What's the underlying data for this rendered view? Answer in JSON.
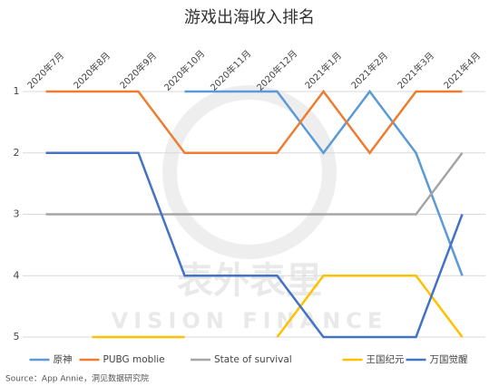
{
  "chart_data": {
    "type": "line",
    "title": "游戏出海收入排名",
    "categories": [
      "2020年7月",
      "2020年8月",
      "2020年9月",
      "2020年10月",
      "2020年11月",
      "2020年12月",
      "2021年1月",
      "2021年2月",
      "2021年3月",
      "2021年4月"
    ],
    "series": [
      {
        "name": "原神",
        "color": "#5b9bd5",
        "values": [
          null,
          null,
          null,
          1,
          1,
          1,
          2,
          1,
          2,
          4
        ]
      },
      {
        "name": "PUBG moblie",
        "color": "#ed7d31",
        "values": [
          1,
          1,
          1,
          2,
          2,
          2,
          1,
          2,
          1,
          1
        ]
      },
      {
        "name": "State of survival",
        "color": "#a5a5a5",
        "values": [
          3,
          3,
          3,
          3,
          3,
          3,
          3,
          3,
          3,
          2
        ]
      },
      {
        "name": "王国纪元",
        "color": "#ffc000",
        "values": [
          null,
          5,
          5,
          5,
          null,
          5,
          4,
          4,
          4,
          5
        ]
      },
      {
        "name": "万国觉醒",
        "color": "#4472c4",
        "values": [
          2,
          2,
          2,
          4,
          4,
          4,
          5,
          5,
          5,
          3
        ]
      }
    ],
    "ylim": [
      1,
      5
    ],
    "yticks": [
      1,
      2,
      3,
      4,
      5
    ],
    "y_reversed": true,
    "grid": true,
    "watermark": "表外表里",
    "watermark_sub": "VISION FINANCE",
    "source": "Source：App Annie，洞见数据研究院"
  }
}
